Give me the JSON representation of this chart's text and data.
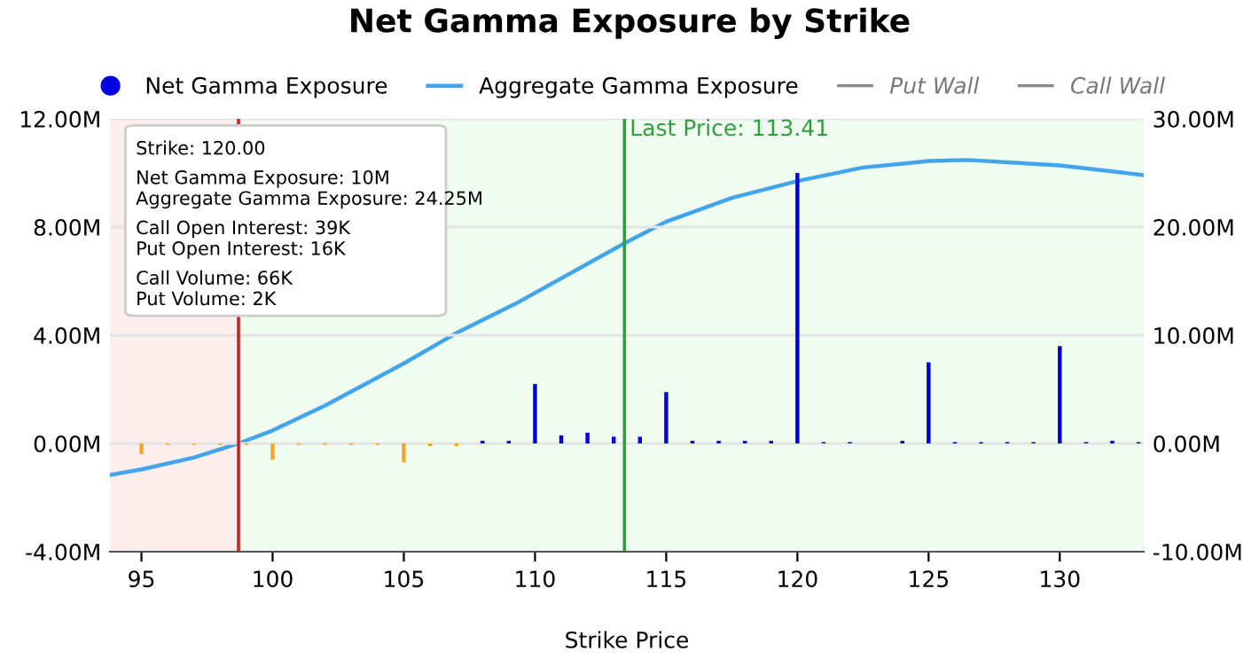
{
  "chart_data": {
    "type": "bar",
    "title": "Net Gamma Exposure by Strike",
    "xlabel": "Strike Price",
    "x": [
      95,
      96,
      97,
      98,
      99,
      100,
      101,
      102,
      103,
      104,
      105,
      106,
      107,
      108,
      109,
      110,
      111,
      112,
      113,
      114,
      115,
      116,
      117,
      118,
      119,
      120,
      121,
      122,
      123,
      124,
      125,
      126,
      127,
      128,
      129,
      130,
      131,
      132,
      133
    ],
    "series": [
      {
        "name": "Net Gamma Exposure",
        "color": "#0000e0",
        "colors": [
          "#f5a623",
          "#f5a623",
          "#f5a623",
          "#f5a623",
          "#f5a623",
          "#f5a623",
          "#f5a623",
          "#f5a623",
          "#f5a623",
          "#f5a623",
          "#f5a623",
          "#f5a623",
          "#f5a623",
          "#0000e0",
          "#0000e0",
          "#0000e0",
          "#0000e0",
          "#0000e0",
          "#0000e0",
          "#0000e0",
          "#0000e0",
          "#0000e0",
          "#0000e0",
          "#0000e0",
          "#0000e0",
          "#0000e0",
          "#0000e0",
          "#0000e0",
          "#0000e0",
          "#0000e0",
          "#0000e0",
          "#0000e0",
          "#0000e0",
          "#0000e0",
          "#0000e0",
          "#0000e0",
          "#0000e0",
          "#0000e0",
          "#0000e0"
        ],
        "values": [
          -0.4,
          -0.05,
          -0.05,
          -0.05,
          -0.05,
          -0.6,
          -0.05,
          -0.05,
          -0.05,
          -0.05,
          -0.7,
          -0.1,
          -0.1,
          0.1,
          0.1,
          2.2,
          0.3,
          0.4,
          0.25,
          0.25,
          1.9,
          0.1,
          0.1,
          0.1,
          0.1,
          10,
          0.05,
          0.05,
          0,
          0.1,
          3.0,
          0.05,
          0.05,
          0.05,
          0.05,
          3.6,
          0.05,
          0.1,
          0.05
        ]
      },
      {
        "name": "Aggregate Gamma Exposure",
        "type": "line",
        "axis": "y2",
        "color": "#42a5ec",
        "x": [
          93.8,
          95,
          97,
          98.7,
          100,
          102,
          105,
          107,
          109.4,
          113.41,
          115,
          117.5,
          120,
          122.5,
          125,
          126.5,
          130,
          133.2
        ],
        "values": [
          -2.9,
          -2.4,
          -1.3,
          0,
          1.2,
          3.5,
          7.4,
          10.2,
          13.1,
          18.5,
          20.5,
          22.7,
          24.25,
          25.5,
          26.1,
          26.2,
          25.7,
          24.8
        ]
      },
      {
        "name": "Put Wall",
        "type": "line",
        "color": "#888888",
        "values": [
          null,
          null,
          null,
          null,
          null,
          null,
          null,
          null,
          null,
          null,
          null,
          null,
          null,
          null,
          null,
          null,
          null,
          null,
          null,
          null,
          null,
          null,
          null,
          null,
          null,
          null,
          null,
          null,
          null,
          null,
          null,
          null,
          null,
          null,
          null,
          null,
          null,
          null,
          null
        ]
      },
      {
        "name": "Call Wall",
        "type": "line",
        "color": "#888888",
        "values": [
          null,
          null,
          null,
          null,
          null,
          null,
          null,
          null,
          null,
          null,
          null,
          null,
          null,
          null,
          null,
          null,
          null,
          null,
          null,
          null,
          null,
          null,
          null,
          null,
          null,
          null,
          null,
          null,
          null,
          null,
          null,
          null,
          null,
          null,
          null,
          null,
          null,
          null,
          null
        ]
      }
    ],
    "xlim": [
      93.8,
      133.2
    ],
    "xticks": [
      95,
      100,
      105,
      110,
      115,
      120,
      125,
      130
    ],
    "ylim": [
      -4,
      12
    ],
    "yticks": [
      {
        "value": -4,
        "label": "-4.00M"
      },
      {
        "value": 0,
        "label": "0.00M"
      },
      {
        "value": 4,
        "label": "4.00M"
      },
      {
        "value": 8,
        "label": "8.00M"
      },
      {
        "value": 12,
        "label": "12.00M"
      }
    ],
    "y2lim": [
      -10,
      30
    ],
    "y2ticks": [
      {
        "value": -10,
        "label": "-10.00M"
      },
      {
        "value": 0,
        "label": "0.00M"
      },
      {
        "value": 10,
        "label": "10.00M"
      },
      {
        "value": 20,
        "label": "20.00M"
      },
      {
        "value": 30,
        "label": "30.00M"
      }
    ],
    "bands": [
      {
        "axis": "x",
        "from": 93.8,
        "to": 98.7,
        "color": "#fdeeee"
      },
      {
        "axis": "x",
        "from": 98.7,
        "to": 133.2,
        "color": "#effcef"
      }
    ],
    "ref_lines": [
      {
        "axis": "x",
        "value": 98.7,
        "color": "#d62020"
      },
      {
        "axis": "x",
        "value": 113.41,
        "label": "Last Price: 113.41",
        "color": "#2e9e3e"
      }
    ],
    "annotations": [
      "Strike: 120.00",
      "Net Gamma Exposure: 10M",
      "Aggregate Gamma Exposure: 24.25M",
      "Call Open Interest: 39K",
      "Put Open Interest: 16K",
      "Call Volume: 66K",
      "Put Volume: 2K"
    ],
    "grid": "y",
    "legend": "top"
  }
}
